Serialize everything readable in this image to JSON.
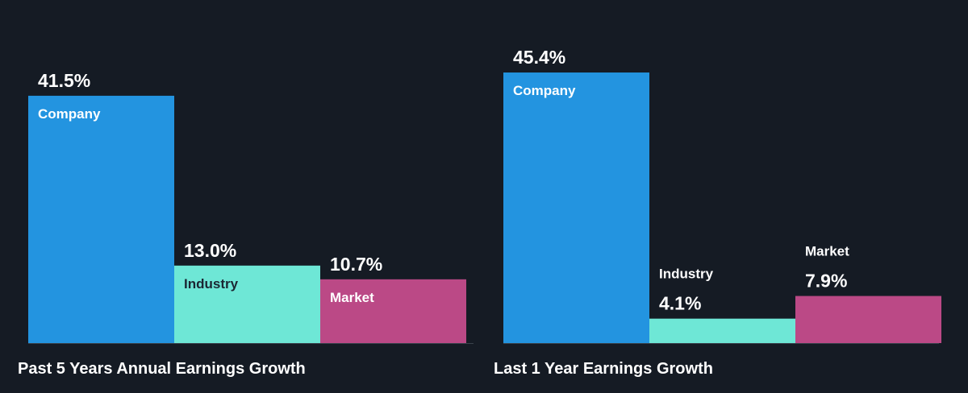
{
  "colors": {
    "background": "#151b24",
    "company": "#2394e0",
    "industry": "#6ee7d6",
    "market": "#bb4986",
    "baseline": "#3a424c"
  },
  "chart_data": [
    {
      "type": "bar",
      "title": "Past 5 Years Annual Earnings Growth",
      "categories": [
        "Company",
        "Industry",
        "Market"
      ],
      "values": [
        41.5,
        13.0,
        10.7
      ],
      "value_labels": [
        "41.5%",
        "13.0%",
        "10.7%"
      ],
      "ylim": [
        0,
        45.4
      ],
      "grid": false
    },
    {
      "type": "bar",
      "title": "Last 1 Year Earnings Growth",
      "categories": [
        "Company",
        "Industry",
        "Market"
      ],
      "values": [
        45.4,
        4.1,
        7.9
      ],
      "value_labels": [
        "45.4%",
        "4.1%",
        "7.9%"
      ],
      "ylim": [
        0,
        45.4
      ],
      "grid": false
    }
  ]
}
